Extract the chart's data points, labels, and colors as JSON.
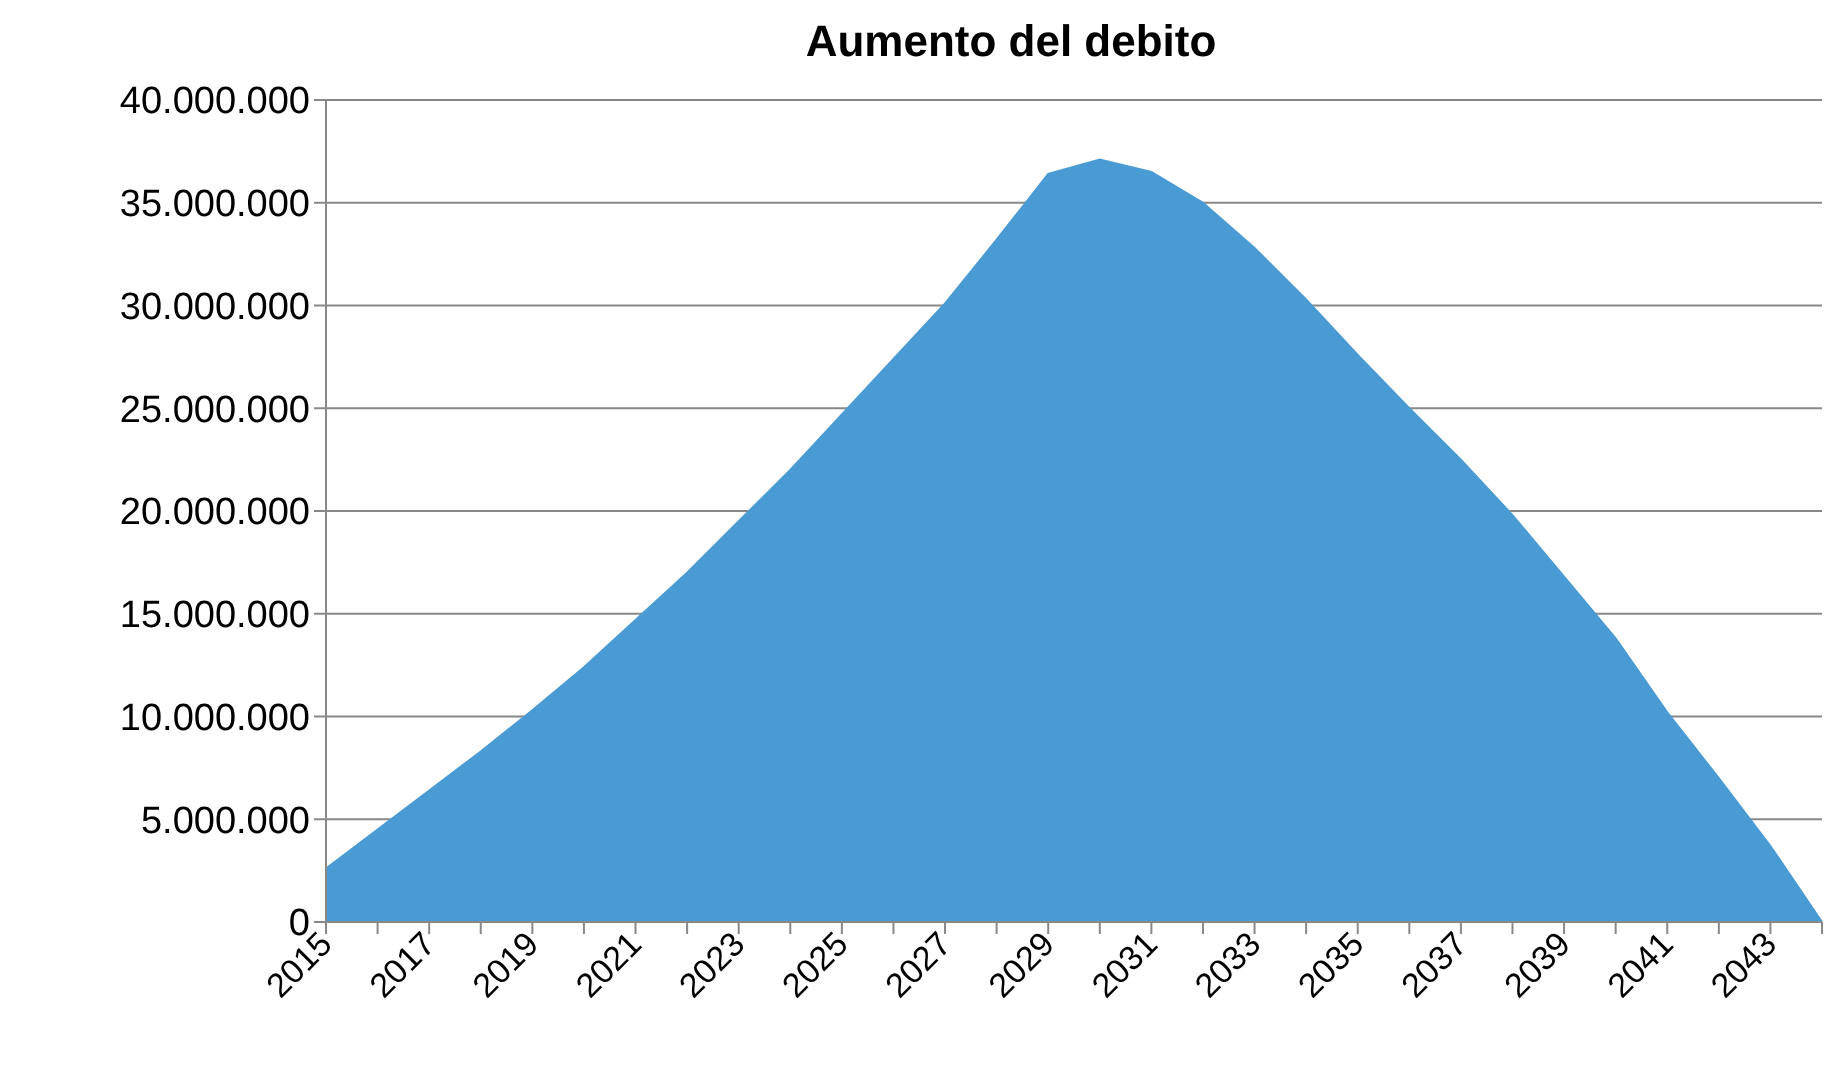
{
  "chart_data": {
    "type": "area",
    "title": "Aumento del debito",
    "categories": [
      "2015",
      null,
      "2017",
      null,
      "2019",
      null,
      "2021",
      null,
      "2023",
      null,
      "2025",
      null,
      "2027",
      null,
      "2029",
      null,
      "2031",
      null,
      "2033",
      null,
      "2035",
      null,
      "2037",
      null,
      "2039",
      null,
      "2041",
      null,
      "2043",
      null
    ],
    "series": [
      {
        "color": "#4a9bd4",
        "values": [
          2600000,
          4500000,
          6400000,
          8300000,
          10300000,
          12400000,
          14700000,
          17000000,
          19500000,
          22000000,
          24700000,
          27400000,
          30100000,
          33200000,
          36400000,
          37100000,
          36500000,
          35000000,
          32800000,
          30300000,
          27600000,
          25000000,
          22500000,
          19800000,
          16800000,
          13800000,
          10200000,
          7000000,
          3700000,
          0
        ]
      }
    ],
    "ylim": [
      0,
      40000000
    ],
    "yticks": [
      {
        "value": 0,
        "label": "0"
      },
      {
        "value": 5000000,
        "label": "5.000.000"
      },
      {
        "value": 10000000,
        "label": "10.000.000"
      },
      {
        "value": 15000000,
        "label": "15.000.000"
      },
      {
        "value": 20000000,
        "label": "20.000.000"
      },
      {
        "value": 25000000,
        "label": "25.000.000"
      },
      {
        "value": 30000000,
        "label": "30.000.000"
      },
      {
        "value": 35000000,
        "label": "35.000.000"
      },
      {
        "value": 40000000,
        "label": "40.000.000"
      }
    ],
    "grid": "y"
  }
}
